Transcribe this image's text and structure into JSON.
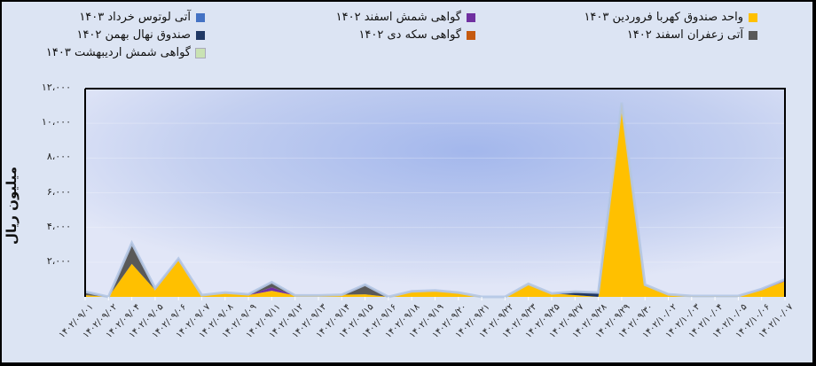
{
  "chart_data": {
    "type": "area",
    "stacked": true,
    "title": "",
    "xlabel": "",
    "ylabel": "میلیون ریال",
    "ylim": [
      0,
      12000
    ],
    "yticks": [
      "۲،۰۰۰",
      "۴،۰۰۰",
      "۶،۰۰۰",
      "۸،۰۰۰",
      "۱۰،۰۰۰",
      "۱۲،۰۰۰"
    ],
    "ytick_values": [
      2000,
      4000,
      6000,
      8000,
      10000,
      12000
    ],
    "grid": true,
    "legend_position": "top",
    "categories": [
      "۱۴۰۲/۰۹/۰۱",
      "۱۴۰۲/۰۹/۰۲",
      "۱۴۰۲/۰۹/۰۴",
      "۱۴۰۲/۰۹/۰۵",
      "۱۴۰۲/۰۹/۰۶",
      "۱۴۰۲/۰۹/۰۷",
      "۱۴۰۲/۰۹/۰۸",
      "۱۴۰۲/۰۹/۰۹",
      "۱۴۰۲/۰۹/۱۱",
      "۱۴۰۲/۰۹/۱۲",
      "۱۴۰۲/۰۹/۱۳",
      "۱۴۰۲/۰۹/۱۴",
      "۱۴۰۲/۰۹/۱۵",
      "۱۴۰۲/۰۹/۱۶",
      "۱۴۰۲/۰۹/۱۸",
      "۱۴۰۲/۰۹/۱۹",
      "۱۴۰۲/۰۹/۲۰",
      "۱۴۰۲/۰۹/۲۱",
      "۱۴۰۲/۰۹/۲۲",
      "۱۴۰۲/۰۹/۲۳",
      "۱۴۰۲/۰۹/۲۵",
      "۱۴۰۲/۰۹/۲۷",
      "۱۴۰۲/۰۹/۲۸",
      "۱۴۰۲/۰۹/۲۹",
      "۱۴۰۲/۰۹/۳۰",
      "۱۴۰۲/۱۰/۰۲",
      "۱۴۰۲/۱۰/۰۳",
      "۱۴۰۲/۱۰/۰۴",
      "۱۴۰۲/۱۰/۰۵",
      "۱۴۰۲/۱۰/۰۶",
      "۱۴۰۲/۱۰/۰۷"
    ],
    "series": [
      {
        "name": "واحد صندوق کهربا فروردین ۱۴۰۳",
        "color": "#ffc000",
        "values": [
          100,
          0,
          1900,
          400,
          2150,
          100,
          250,
          100,
          350,
          80,
          80,
          120,
          150,
          0,
          300,
          350,
          250,
          0,
          0,
          750,
          200,
          100,
          0,
          11200,
          700,
          150,
          50,
          50,
          50,
          400,
          900
        ]
      },
      {
        "name": "گواهی شمش اسفند ۱۴۰۲",
        "color": "#7030a0",
        "values": [
          0,
          0,
          0,
          0,
          50,
          0,
          0,
          0,
          200,
          0,
          0,
          0,
          0,
          0,
          20,
          20,
          0,
          0,
          0,
          0,
          0,
          0,
          0,
          0,
          0,
          0,
          0,
          0,
          0,
          50,
          100
        ]
      },
      {
        "name": "آتی لوتوس خرداد ۱۴۰۳",
        "color": "#4472c4",
        "values": [
          0,
          0,
          0,
          0,
          0,
          0,
          0,
          0,
          0,
          0,
          0,
          0,
          0,
          0,
          0,
          0,
          0,
          0,
          0,
          0,
          0,
          0,
          0,
          0,
          0,
          0,
          0,
          0,
          0,
          0,
          0
        ]
      },
      {
        "name": "آتی زعفران اسفند ۱۴۰۲",
        "color": "#595959",
        "values": [
          200,
          0,
          1200,
          100,
          0,
          0,
          0,
          50,
          300,
          0,
          0,
          0,
          550,
          0,
          0,
          0,
          0,
          0,
          0,
          0,
          0,
          0,
          0,
          0,
          0,
          0,
          0,
          0,
          0,
          0,
          0
        ]
      },
      {
        "name": "گواهی سکه دی ۱۴۰۲",
        "color": "#c55a11",
        "values": [
          0,
          0,
          0,
          0,
          0,
          0,
          0,
          0,
          0,
          0,
          0,
          0,
          0,
          0,
          0,
          0,
          0,
          0,
          0,
          0,
          0,
          0,
          0,
          0,
          0,
          0,
          0,
          0,
          0,
          0,
          0
        ]
      },
      {
        "name": "صندوق نهال بهمن ۱۴۰۲",
        "color": "#203864",
        "values": [
          0,
          0,
          0,
          0,
          0,
          0,
          0,
          0,
          0,
          0,
          0,
          0,
          0,
          0,
          0,
          0,
          0,
          0,
          0,
          0,
          0,
          200,
          250,
          0,
          0,
          0,
          0,
          0,
          0,
          0,
          0
        ]
      },
      {
        "name": "گواهی شمش اردیبهشت ۱۴۰۳",
        "color": "#c9e2b3",
        "values": [
          0,
          0,
          0,
          0,
          0,
          0,
          0,
          0,
          0,
          0,
          0,
          0,
          0,
          0,
          0,
          0,
          0,
          0,
          0,
          0,
          0,
          0,
          0,
          0,
          0,
          0,
          0,
          0,
          0,
          0,
          0
        ]
      }
    ]
  },
  "legend": {
    "items": [
      {
        "label": "واحد صندوق کهربا فروردین ۱۴۰۳",
        "color": "#ffc000"
      },
      {
        "label": "گواهی شمش اسفند ۱۴۰۲",
        "color": "#7030a0"
      },
      {
        "label": "آتی لوتوس خرداد ۱۴۰۳",
        "color": "#4472c4"
      },
      {
        "label": "آتی زعفران اسفند ۱۴۰۲",
        "color": "#595959"
      },
      {
        "label": "گواهی سکه دی ۱۴۰۲",
        "color": "#c55a11"
      },
      {
        "label": "صندوق نهال بهمن ۱۴۰۲",
        "color": "#203864"
      },
      {
        "label": "گواهی شمش اردیبهشت ۱۴۰۳",
        "color": "#c9e2b3"
      }
    ]
  },
  "axis": {
    "y_title": "میلیون ریال"
  }
}
